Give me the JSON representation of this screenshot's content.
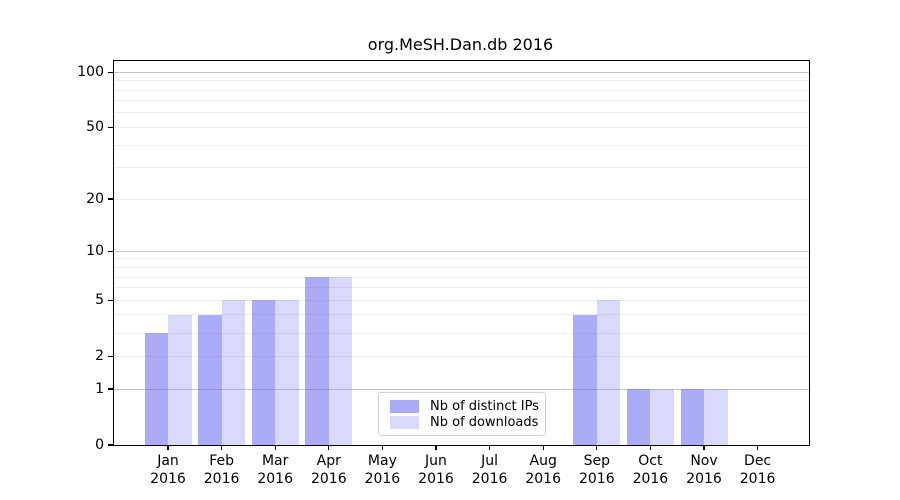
{
  "title": "org.MeSH.Dan.db 2016",
  "colors": {
    "bar_base": "#6666f0",
    "distinct_ips_fill": "rgba(102,102,240,0.55)",
    "downloads_fill": "rgba(102,102,240,0.25)",
    "grid_major": "#c6c6c6",
    "grid_minor": "#ededed",
    "axis": "#000000",
    "legend_border": "#d2d2d2"
  },
  "legend": {
    "items": [
      {
        "label": "Nb of distinct IPs",
        "color_key": "distinct_ips_fill"
      },
      {
        "label": "Nb of downloads",
        "color_key": "downloads_fill"
      }
    ]
  },
  "chart_data": {
    "type": "bar",
    "title": "org.MeSH.Dan.db 2016",
    "y_scale": "log1p",
    "categories": [
      "Jan 2016",
      "Feb 2016",
      "Mar 2016",
      "Apr 2016",
      "May 2016",
      "Jun 2016",
      "Jul 2016",
      "Aug 2016",
      "Sep 2016",
      "Oct 2016",
      "Nov 2016",
      "Dec 2016"
    ],
    "series": [
      {
        "name": "Nb of distinct IPs",
        "values": [
          3,
          4,
          5,
          7,
          0,
          0,
          0,
          0,
          4,
          1,
          1,
          0
        ]
      },
      {
        "name": "Nb of downloads",
        "values": [
          4,
          5,
          5,
          7,
          0,
          0,
          0,
          0,
          5,
          1,
          1,
          0
        ]
      }
    ],
    "xlabel": "",
    "ylabel": "",
    "ylim": [
      0,
      115
    ],
    "y_ticks": [
      100,
      50,
      20,
      10,
      5,
      2,
      1,
      0
    ],
    "gridlines": {
      "major": [
        1,
        10,
        100
      ],
      "minor": [
        2,
        3,
        4,
        5,
        6,
        7,
        8,
        9,
        20,
        30,
        40,
        50,
        60,
        70,
        80,
        90
      ]
    },
    "grid": "on",
    "legend_position": "lower center"
  }
}
